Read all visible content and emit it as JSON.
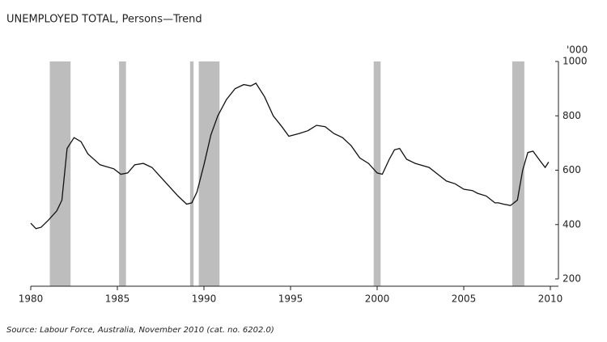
{
  "chart_data": {
    "type": "line",
    "title": "UNEMPLOYED TOTAL, Persons—Trend",
    "y_unit": "'000",
    "source": "Source: Labour Force, Australia, November 2010 (cat. no. 6202.0)",
    "x": [
      1980.0,
      1980.3,
      1980.6,
      1981.0,
      1981.5,
      1981.8,
      1982.1,
      1982.5,
      1982.9,
      1983.3,
      1984.0,
      1984.8,
      1985.2,
      1985.6,
      1986.0,
      1986.5,
      1987.0,
      1987.5,
      1988.0,
      1988.5,
      1989.0,
      1989.3,
      1989.6,
      1990.0,
      1990.4,
      1990.8,
      1991.3,
      1991.8,
      1992.3,
      1992.7,
      1993.0,
      1993.5,
      1994.0,
      1994.5,
      1994.9,
      1995.5,
      1996.0,
      1996.5,
      1997.0,
      1997.5,
      1998.0,
      1998.5,
      1999.0,
      1999.5,
      2000.0,
      2000.3,
      2000.7,
      2001.0,
      2001.3,
      2001.7,
      2002.2,
      2003.0,
      2003.5,
      2004.0,
      2004.5,
      2005.0,
      2005.5,
      2005.8,
      2006.3,
      2006.8,
      2007.0,
      2007.3,
      2007.7,
      2008.1,
      2008.4,
      2008.7,
      2009.0,
      2009.4,
      2009.7,
      2009.9
    ],
    "series": [
      {
        "name": "Unemployed total",
        "color": "#111111",
        "values": [
          405,
          385,
          390,
          415,
          450,
          490,
          680,
          720,
          705,
          660,
          620,
          605,
          585,
          590,
          620,
          625,
          610,
          575,
          540,
          505,
          475,
          480,
          520,
          620,
          730,
          800,
          860,
          900,
          915,
          910,
          920,
          870,
          800,
          760,
          725,
          735,
          745,
          765,
          760,
          735,
          720,
          690,
          645,
          625,
          590,
          585,
          640,
          675,
          680,
          640,
          625,
          610,
          585,
          560,
          550,
          530,
          525,
          515,
          505,
          480,
          480,
          475,
          470,
          490,
          600,
          665,
          670,
          635,
          610,
          630
        ]
      }
    ],
    "shaded_periods": [
      [
        1981.1,
        1982.3
      ],
      [
        1985.1,
        1985.5
      ],
      [
        1989.2,
        1989.4
      ],
      [
        1989.7,
        1990.9
      ],
      [
        1999.8,
        2000.2
      ],
      [
        2007.8,
        2008.5
      ]
    ],
    "shade_color": "#bdbdbd",
    "xlim": [
      1980,
      2010
    ],
    "xticks": [
      1980,
      1985,
      1990,
      1995,
      2000,
      2005,
      2010
    ],
    "ylim": [
      200,
      1000
    ],
    "yticks": [
      200,
      400,
      600,
      800,
      1000
    ]
  }
}
